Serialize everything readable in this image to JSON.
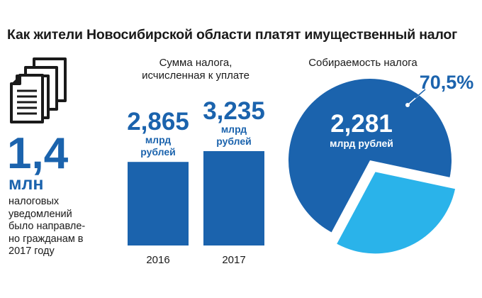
{
  "title": "Как жители Новосибирской области платят имущественный налог",
  "notices": {
    "value": "1,4",
    "unit": "млн",
    "text_lines": [
      "налоговых",
      "уведомлений",
      "было направле-",
      "но гражданам в",
      "2017 году"
    ]
  },
  "bar_section": {
    "heading_lines": [
      "Сумма налога,",
      "исчисленная к уплате"
    ]
  },
  "pie_section": {
    "heading": "Собираемость налога",
    "center_value": "2,281",
    "center_unit": "млрд рублей"
  },
  "colors": {
    "bar": "#1b63ad",
    "pie_collected": "#1b63ad",
    "pie_remaining": "#2ab3ea",
    "accent_text": "#1b63ad",
    "docs_icon": "#1a1a1a"
  },
  "chart_data": [
    {
      "type": "bar",
      "categories": [
        "2016",
        "2017"
      ],
      "values": [
        2.865,
        3.235
      ],
      "value_labels": [
        "2,865",
        "3,235"
      ],
      "unit_label": "млрд рублей",
      "unit_label_lines": [
        "млрд",
        "рублей"
      ],
      "title": "Сумма налога, исчисленная к уплате",
      "ylim": [
        0,
        3.235
      ],
      "grid": false,
      "legend": "none"
    },
    {
      "type": "pie",
      "slices": [
        {
          "label": "2,281 млрд рублей",
          "value": 70.5,
          "value_label": "70,5%",
          "exploded": false
        },
        {
          "label": "",
          "value": 29.5,
          "value_label": "",
          "exploded": true
        }
      ],
      "title": "Собираемость налога",
      "legend": "none"
    }
  ]
}
